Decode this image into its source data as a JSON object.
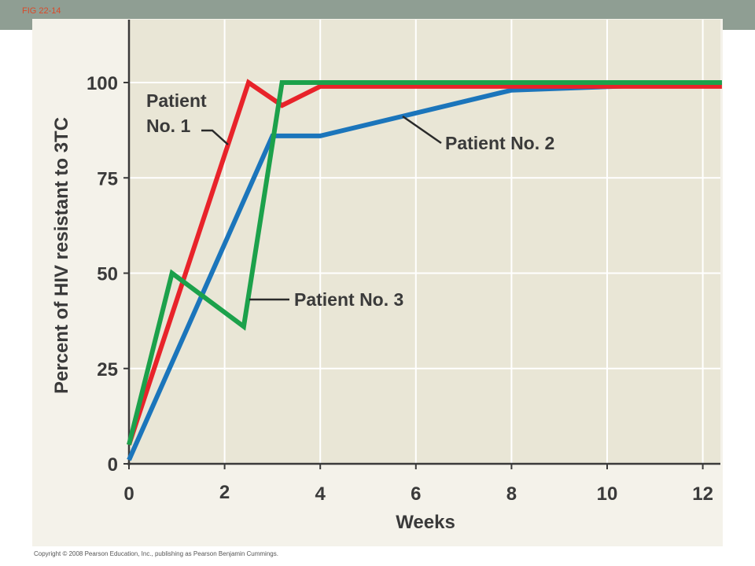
{
  "header": {
    "fig_label": "FIG 22-14"
  },
  "footer": {
    "copyright": "Copyright © 2008 Pearson Education, Inc., publishing as Pearson Benjamin Cummings."
  },
  "chart_data": {
    "type": "line",
    "title": "",
    "xlabel": "Weeks",
    "ylabel": "Percent of HIV resistant to 3TC",
    "xlim": [
      0,
      12.4
    ],
    "ylim": [
      0,
      115
    ],
    "xticks": [
      0,
      2,
      4,
      6,
      8,
      10,
      12
    ],
    "yticks": [
      0,
      25,
      50,
      75,
      100
    ],
    "grid": true,
    "plot_background": "#e9e6d6",
    "series": [
      {
        "name": "Patient No. 1",
        "color": "#e8232a",
        "points": [
          [
            0,
            5
          ],
          [
            2.5,
            100
          ],
          [
            3.2,
            94
          ],
          [
            4,
            99
          ],
          [
            12.4,
            99
          ]
        ]
      },
      {
        "name": "Patient No. 2",
        "color": "#1b75bb",
        "points": [
          [
            0,
            1
          ],
          [
            3,
            86
          ],
          [
            4,
            86
          ],
          [
            6,
            92
          ],
          [
            8,
            98
          ],
          [
            12.4,
            100
          ]
        ]
      },
      {
        "name": "Patient No. 3",
        "color": "#1ca14b",
        "points": [
          [
            0,
            5
          ],
          [
            0.9,
            50
          ],
          [
            2.4,
            36
          ],
          [
            3.2,
            100
          ],
          [
            12.4,
            100
          ]
        ]
      }
    ],
    "annotations": [
      {
        "line1": "Patient",
        "line2": "No. 1",
        "series": "Patient No. 1"
      },
      {
        "line1": "Patient No. 2",
        "series": "Patient No. 2"
      },
      {
        "line1": "Patient No. 3",
        "series": "Patient No. 3"
      }
    ]
  }
}
